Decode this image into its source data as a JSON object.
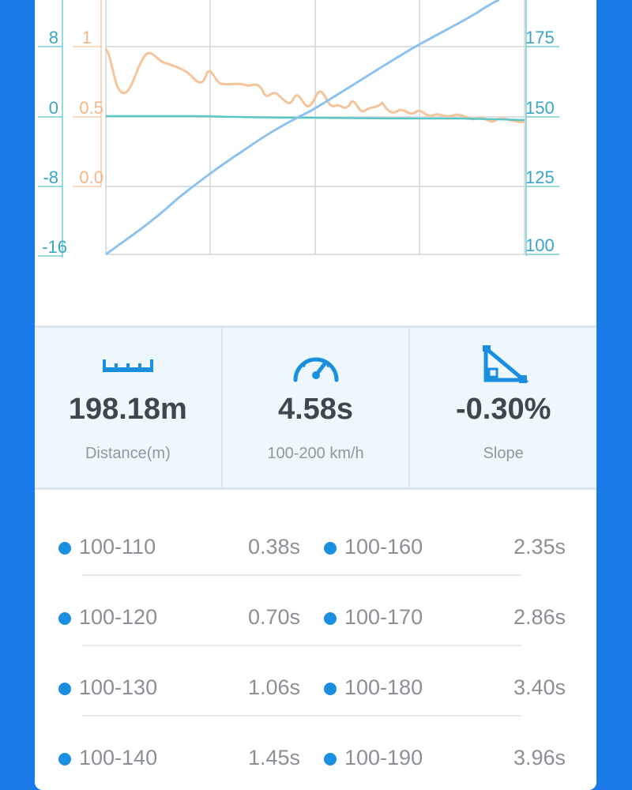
{
  "chart": {
    "left_axis_outer": [
      "8",
      "0",
      "-8",
      "-16"
    ],
    "left_axis_inner": [
      "1",
      "0.5",
      "0.0"
    ],
    "right_axis": [
      "175",
      "150",
      "125",
      "100"
    ],
    "colors": {
      "speed_line": "#8ec2ee",
      "accel_line": "#f6c49a",
      "slope_line": "#5cc6c4",
      "outer_axis_text": "#3aa6c7",
      "inner_axis_text": "#f3b78a",
      "grid": "#d2d6d9"
    }
  },
  "stats": [
    {
      "icon": "ruler-icon",
      "value": "198.18m",
      "label": "Distance(m)"
    },
    {
      "icon": "speedometer-icon",
      "value": "4.58s",
      "label": "100-200 km/h"
    },
    {
      "icon": "slope-icon",
      "value": "-0.30%",
      "label": "Slope"
    }
  ],
  "splits": [
    {
      "left_label": "100-110",
      "left_time": "0.38s",
      "right_label": "100-160",
      "right_time": "2.35s"
    },
    {
      "left_label": "100-120",
      "left_time": "0.70s",
      "right_label": "100-170",
      "right_time": "2.86s"
    },
    {
      "left_label": "100-130",
      "left_time": "1.06s",
      "right_label": "100-180",
      "right_time": "3.40s"
    },
    {
      "left_label": "100-140",
      "left_time": "1.45s",
      "right_label": "100-190",
      "right_time": "3.96s"
    }
  ]
}
